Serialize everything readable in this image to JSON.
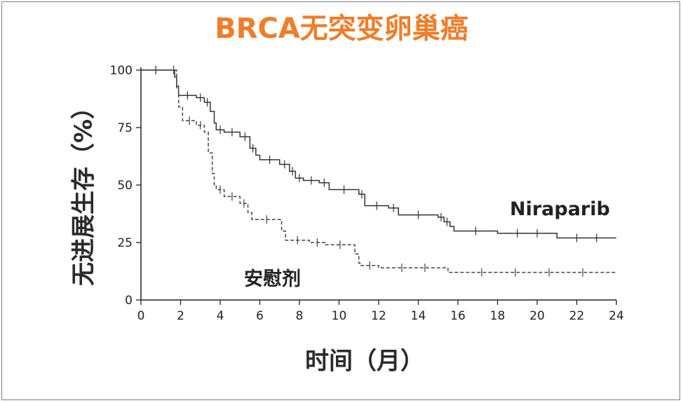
{
  "chart_data": {
    "type": "line",
    "title": "BRCA无突变卵巢癌",
    "xlabel": "时间（月）",
    "ylabel": "无进展生存（%）",
    "xlim": [
      0,
      24
    ],
    "ylim": [
      0,
      100
    ],
    "x_ticks": [
      0,
      2,
      4,
      6,
      8,
      10,
      12,
      14,
      16,
      18,
      20,
      22,
      24
    ],
    "y_ticks": [
      0,
      25,
      50,
      75,
      100
    ],
    "grid": false,
    "legend": "none",
    "series": [
      {
        "name": "Niraparib",
        "style": "solid",
        "color": "#333333",
        "x": [
          0,
          1.5,
          1.7,
          1.8,
          1.9,
          2.8,
          3.2,
          3.5,
          3.7,
          3.8,
          4.2,
          5.0,
          5.5,
          5.8,
          6.0,
          7.0,
          7.5,
          7.8,
          8.2,
          9.0,
          9.5,
          11.0,
          11.3,
          12.5,
          13.0,
          15.0,
          15.3,
          15.6,
          15.8,
          18.0,
          21.0,
          24.0
        ],
        "y": [
          100,
          100,
          97,
          93,
          89,
          88,
          86,
          82,
          77,
          74,
          73,
          71,
          66,
          63,
          61,
          59,
          56,
          53,
          52,
          51,
          48,
          46,
          41,
          40,
          37,
          36,
          34,
          32,
          30,
          29,
          27,
          27
        ]
      },
      {
        "name": "安慰剂",
        "style": "dashed",
        "color": "#444444",
        "x": [
          0,
          1.5,
          1.8,
          1.9,
          2.1,
          2.8,
          3.2,
          3.4,
          3.6,
          3.7,
          3.8,
          4.2,
          5.0,
          5.4,
          5.6,
          7.1,
          7.3,
          8.5,
          9.3,
          10.8,
          11.0,
          11.1,
          12.0,
          15.5,
          24.0
        ],
        "y": [
          100,
          100,
          92,
          84,
          78,
          76,
          73,
          64,
          55,
          50,
          48,
          45,
          42,
          38,
          35,
          30,
          26,
          25,
          24,
          20,
          16,
          15,
          14,
          12,
          12
        ]
      }
    ]
  }
}
